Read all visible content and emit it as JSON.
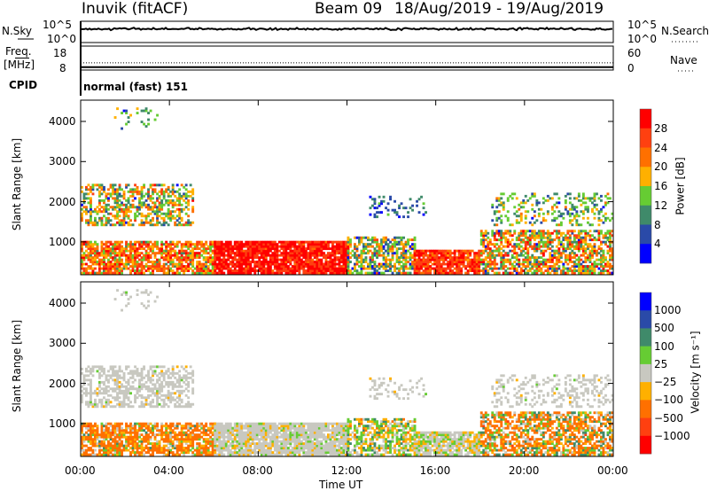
{
  "title": {
    "station": "Inuvik (fitACF)",
    "beam": "Beam 09",
    "dates": "18/Aug/2019 - 19/Aug/2019"
  },
  "nsky": {
    "label": "N.Sky",
    "tick_top": "10^5",
    "tick_bottom": "10^0",
    "right_label": "N.Search",
    "right_tick_top": "10^5",
    "right_tick_bottom": "10^0",
    "log_level": 3.2
  },
  "freq": {
    "label_1": "Freq.",
    "label_2": "[MHz]",
    "tick_top": "18",
    "tick_bottom": "8",
    "right_label": "Nave",
    "right_tick_top": "60",
    "right_tick_bottom": "0",
    "freq_mhz": 9.2,
    "nave": 18
  },
  "cpid": {
    "label": "CPID",
    "value": "normal (fast) 151"
  },
  "xaxis": {
    "label": "Time UT",
    "ticks": [
      "00:00",
      "04:00",
      "08:00",
      "12:00",
      "16:00",
      "20:00",
      "00:00"
    ]
  },
  "yaxis": {
    "label": "Slant Range [km]",
    "ticks": [
      "1000",
      "2000",
      "3000",
      "4000"
    ]
  },
  "power_scale": {
    "label": "Power [dB]",
    "ticks": [
      "28",
      "24",
      "20",
      "16",
      "12",
      "8",
      "4"
    ],
    "colors": [
      "#ff0000",
      "#ff4010",
      "#ff7000",
      "#ffb000",
      "#66cc33",
      "#3f8a6a",
      "#2a4aa8",
      "#0000ff"
    ]
  },
  "velocity_scale": {
    "label": "Velocity [m s⁻¹]",
    "ticks": [
      "1000",
      "500",
      "100",
      "25",
      "−25",
      "−100",
      "−500",
      "−1000"
    ],
    "colors": [
      "#0000ff",
      "#2a4aa8",
      "#3f8a6a",
      "#66cc33",
      "#c8c8c0",
      "#ffb000",
      "#ff7000",
      "#ff4010",
      "#ff0000"
    ]
  },
  "chart_data": {
    "type": "heatmap",
    "x_unit": "hours UT",
    "xlim": [
      0,
      24
    ],
    "y_unit": "km",
    "ylim": [
      180,
      4530
    ],
    "regions": [
      {
        "t": [
          0,
          6
        ],
        "r": [
          200,
          1000
        ],
        "power": 22,
        "power_spread": 8,
        "vel": -150,
        "vel_spread": 200,
        "density": 0.75
      },
      {
        "t": [
          6,
          12
        ],
        "r": [
          200,
          1000
        ],
        "power": 29,
        "power_spread": 4,
        "vel": 0,
        "vel_spread": 30,
        "density": 0.9
      },
      {
        "t": [
          12,
          15
        ],
        "r": [
          200,
          1100
        ],
        "power": 14,
        "power_spread": 8,
        "vel": 20,
        "vel_spread": 120,
        "density": 0.6
      },
      {
        "t": [
          15,
          18
        ],
        "r": [
          200,
          800
        ],
        "power": 27,
        "power_spread": 5,
        "vel": 0,
        "vel_spread": 40,
        "density": 0.85
      },
      {
        "t": [
          18,
          24
        ],
        "r": [
          200,
          1300
        ],
        "power": 18,
        "power_spread": 10,
        "vel": -100,
        "vel_spread": 250,
        "density": 0.65
      },
      {
        "t": [
          0,
          5
        ],
        "r": [
          1400,
          2400
        ],
        "power": 16,
        "power_spread": 8,
        "vel": 0,
        "vel_spread": 20,
        "density": 0.5
      },
      {
        "t": [
          13,
          15.5
        ],
        "r": [
          1600,
          2100
        ],
        "power": 8,
        "power_spread": 4,
        "vel": 0,
        "vel_spread": 20,
        "density": 0.2
      },
      {
        "t": [
          18.5,
          24
        ],
        "r": [
          1400,
          2200
        ],
        "power": 13,
        "power_spread": 6,
        "vel": 0,
        "vel_spread": 20,
        "density": 0.3
      },
      {
        "t": [
          1.5,
          3.5
        ],
        "r": [
          3800,
          4300
        ],
        "power": 12,
        "power_spread": 6,
        "vel": 0,
        "vel_spread": 20,
        "density": 0.12
      }
    ]
  }
}
